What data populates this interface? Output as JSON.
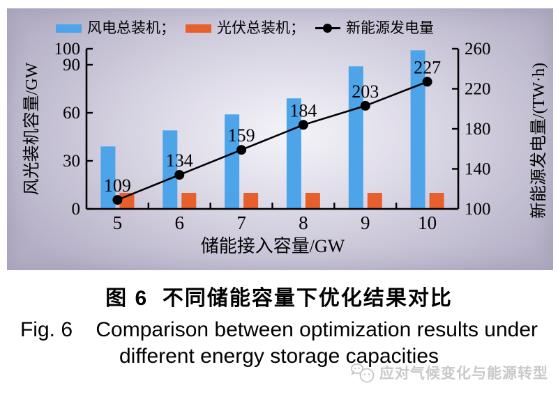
{
  "figure": {
    "legend_labels": [
      "风电总装机；",
      "光伏总装机；",
      "新能源发电量"
    ]
  },
  "chart_data": {
    "type": "bar+line",
    "title": "",
    "categories": [
      "5",
      "6",
      "7",
      "8",
      "9",
      "10"
    ],
    "series": [
      {
        "name": "风电总装机",
        "id": "wind",
        "type": "bar",
        "axis": "left",
        "color": "#4da4e9",
        "values": [
          39,
          49,
          59,
          69,
          89,
          99
        ]
      },
      {
        "name": "光伏总装机",
        "id": "solar",
        "type": "bar",
        "axis": "left",
        "color": "#e7602c",
        "values": [
          10,
          10,
          10,
          10,
          10,
          10
        ]
      },
      {
        "name": "新能源发电量",
        "id": "generation",
        "type": "line",
        "axis": "right",
        "color": "#000000",
        "values": [
          109,
          134,
          159,
          184,
          203,
          227
        ],
        "point_labels": [
          "109",
          "134",
          "159",
          "184",
          "203",
          "227"
        ]
      }
    ],
    "left_axis": {
      "title": "风光装机容量/GW",
      "range": [
        0,
        100
      ],
      "ticks": [
        0,
        30,
        60,
        90,
        100
      ]
    },
    "right_axis": {
      "title": "新能源发电量/(TW·h)",
      "range": [
        100,
        260
      ],
      "ticks": [
        100,
        140,
        180,
        220,
        260
      ]
    },
    "x_axis": {
      "title": "储能接入容量/GW"
    },
    "legend_position": "top",
    "grid": false
  },
  "caption": {
    "zh": "图 6  不同储能容量下优化结果对比",
    "en_line1": "Fig. 6    Comparison between optimization results under",
    "en_line2": "different energy storage capacities"
  },
  "watermark": {
    "text": "应对气候变化与能源转型"
  }
}
